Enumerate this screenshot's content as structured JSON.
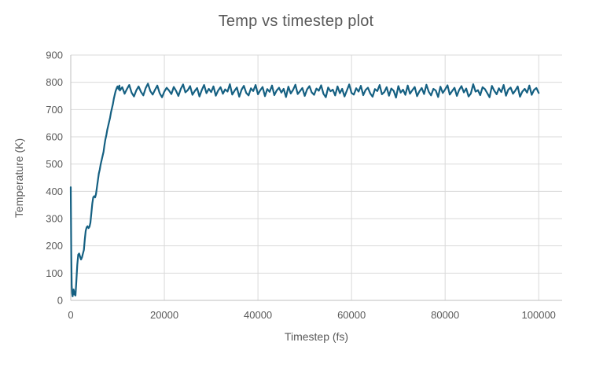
{
  "colors": {
    "background": "#ffffff",
    "gridline": "#d9d9d9",
    "axis_line": "#bfbfbf",
    "text": "#595959",
    "line": "#156082"
  },
  "chart_data": {
    "type": "line",
    "title": "Temp vs timestep plot",
    "xlabel": "Timestep (fs)",
    "ylabel": "Temperature (K)",
    "xlim": [
      0,
      105000
    ],
    "ylim": [
      0,
      900
    ],
    "x_ticks": [
      0,
      20000,
      40000,
      60000,
      80000,
      100000
    ],
    "y_ticks": [
      0,
      100,
      200,
      300,
      400,
      500,
      600,
      700,
      800,
      900
    ],
    "grid": true,
    "legend": "none",
    "line_color": "#156082",
    "series": [
      {
        "name": "Temperature",
        "segments": [
          {
            "x": [
              0,
              100,
              200,
              300,
              400,
              600,
              800,
              1000,
              1200,
              1400,
              1600,
              1800,
              2000,
              2200,
              2400,
              2600,
              2800,
              3000,
              3200,
              3400,
              3600,
              3800,
              4000,
              4200,
              4400,
              4600,
              4800,
              5000,
              5200,
              5400,
              5600,
              5800,
              6000,
              6200,
              6400,
              6600,
              6800,
              7000,
              7200,
              7400,
              7600,
              7800,
              8000,
              8200,
              8400,
              8600,
              8800,
              9000,
              9200,
              9400,
              9600,
              9800,
              10000,
              10200,
              10400
            ],
            "y": [
              415,
              180,
              55,
              25,
              15,
              40,
              22,
              18,
              70,
              130,
              168,
              172,
              160,
              150,
              158,
              172,
              185,
              225,
              255,
              268,
              272,
              265,
              270,
              285,
              320,
              355,
              378,
              382,
              378,
              390,
              415,
              440,
              465,
              480,
              500,
              515,
              530,
              545,
              570,
              590,
              605,
              625,
              640,
              655,
              670,
              690,
              705,
              720,
              740,
              755,
              768,
              778,
              785,
              775,
              788
            ]
          },
          {
            "x_start": 10500,
            "x_step": 500,
            "y": [
              770,
              782,
              758,
              775,
              790,
              762,
              748,
              770,
              785,
              765,
              752,
              778,
              795,
              768,
              755,
              772,
              788,
              760,
              745,
              766,
              780,
              770,
              757,
              783,
              769,
              750,
              775,
              792,
              763,
              771,
              786,
              754,
              768,
              779,
              748,
              772,
              790,
              760,
              776,
              764,
              785,
              751,
              770,
              782,
              758,
              774,
              766,
              793,
              755,
              769,
              781,
              747,
              773,
              787,
              761,
              752,
              778,
              768,
              790,
              756,
              771,
              783,
              749,
              775,
              765,
              788,
              753,
              770,
              780,
              762,
              776,
              746,
              784,
              759,
              772,
              791,
              757,
              768,
              779,
              750,
              774,
              786,
              763,
              754,
              777,
              769,
              789,
              758,
              745,
              781,
              767,
              773,
              752,
              785,
              760,
              776,
              748,
              770,
              792,
              761,
              755,
              778,
              766,
              787,
              753,
              772,
              780,
              759,
              747,
              775,
              768,
              790,
              756,
              764,
              782,
              751,
              777,
              769,
              744,
              786,
              762,
              773,
              754,
              788,
              758,
              771,
              783,
              749,
              767,
              779,
              757,
              791,
              765,
              752,
              776,
              770,
              746,
              784,
              761,
              774,
              789,
              755,
              768,
              780,
              750,
              772,
              786,
              763,
              777,
              748,
              759,
              793,
              766,
              771,
              753,
              782,
              775,
              760,
              745,
              787,
              769,
              756,
              778,
              764,
              790,
              751,
              773,
              781,
              758,
              770,
              785,
              747,
              766,
              776,
              762,
              788,
              754,
              772,
              779,
              761
            ]
          }
        ]
      }
    ]
  }
}
